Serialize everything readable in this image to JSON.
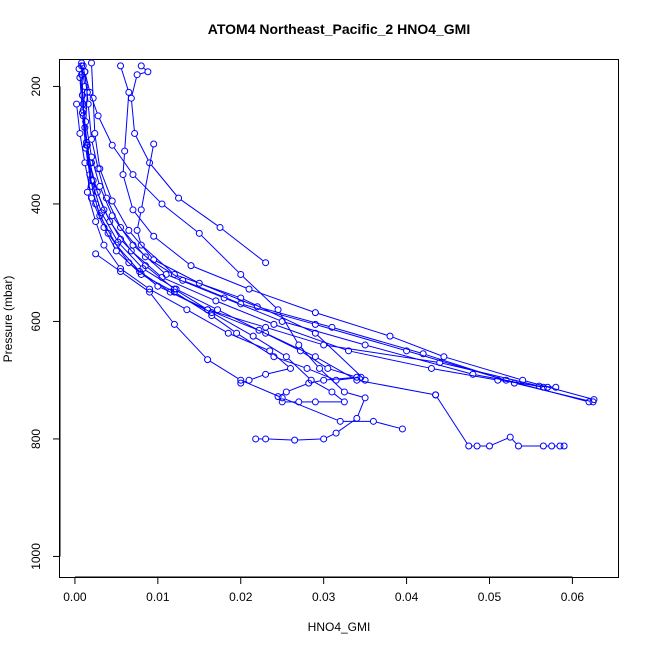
{
  "chart_data": {
    "type": "scatter",
    "title": "ATOM4 Northeast_Pacific_2 HNO4_GMI",
    "xlabel": "HNO4_GMI",
    "ylabel": "Pressure (mbar)",
    "xlim": [
      -0.0018,
      0.0655
    ],
    "ylim": [
      1035,
      155
    ],
    "y_reversed": true,
    "x_ticks": [
      0.0,
      0.01,
      0.02,
      0.03,
      0.04,
      0.05,
      0.06
    ],
    "x_tick_labels": [
      "0.00",
      "0.01",
      "0.02",
      "0.03",
      "0.04",
      "0.05",
      "0.06"
    ],
    "y_ticks": [
      200,
      400,
      600,
      800,
      1000
    ],
    "y_tick_labels": [
      "200",
      "400",
      "600",
      "800",
      "1000"
    ],
    "grid": false,
    "legend": "none",
    "color": "#0000ff",
    "marker": "open-circle",
    "series": [
      {
        "x": [
          0.0008,
          0.0012,
          0.001,
          0.0014,
          0.0018,
          0.0025,
          0.004,
          0.0065,
          0.01,
          0.016,
          0.023,
          0.03,
          0.044,
          0.056,
          0.058
        ],
        "y": [
          160,
          200,
          250,
          300,
          350,
          400,
          450,
          500,
          540,
          580,
          610,
          640,
          670,
          710,
          712
        ]
      },
      {
        "x": [
          0.001,
          0.0015,
          0.0013,
          0.002,
          0.003,
          0.0045,
          0.007,
          0.011,
          0.018,
          0.025,
          0.035,
          0.048,
          0.0565
        ],
        "y": [
          165,
          210,
          260,
          320,
          370,
          420,
          470,
          520,
          560,
          600,
          640,
          690,
          712
        ]
      },
      {
        "x": [
          0.0005,
          0.0009,
          0.0012,
          0.0018,
          0.0027,
          0.0042,
          0.0068,
          0.0105,
          0.017,
          0.024,
          0.033,
          0.043,
          0.051,
          0.057
        ],
        "y": [
          170,
          215,
          270,
          330,
          380,
          430,
          480,
          525,
          565,
          605,
          650,
          680,
          700,
          712
        ]
      },
      {
        "x": [
          0.0012,
          0.0016,
          0.002,
          0.0028,
          0.0038,
          0.0055,
          0.0085,
          0.013,
          0.02,
          0.029,
          0.04,
          0.052,
          0.062
        ],
        "y": [
          175,
          230,
          290,
          340,
          390,
          440,
          490,
          530,
          570,
          605,
          650,
          700,
          737
        ]
      },
      {
        "x": [
          0.002,
          0.0022,
          0.0024,
          0.003,
          0.0045,
          0.0065,
          0.0095,
          0.015,
          0.022,
          0.031,
          0.042,
          0.053,
          0.0625
        ],
        "y": [
          160,
          220,
          280,
          340,
          395,
          445,
          495,
          535,
          575,
          610,
          655,
          705,
          737
        ]
      },
      {
        "x": [
          0.0055,
          0.0065,
          0.006,
          0.0058,
          0.007,
          0.0095,
          0.014,
          0.021,
          0.029,
          0.038,
          0.0445,
          0.054,
          0.0626
        ],
        "y": [
          165,
          210,
          310,
          350,
          410,
          455,
          505,
          545,
          585,
          625,
          660,
          700,
          733
        ]
      },
      {
        "x": [
          0.008,
          0.0088,
          0.0075,
          0.0068,
          0.0072,
          0.009,
          0.0125,
          0.0175,
          0.023
        ],
        "y": [
          165,
          175,
          180,
          220,
          280,
          330,
          390,
          440,
          500
        ]
      },
      {
        "x": [
          0.0095,
          0.008,
          0.0075,
          0.008,
          0.012,
          0.02,
          0.029,
          0.035
        ],
        "y": [
          298,
          410,
          445,
          470,
          520,
          560,
          620,
          700
        ]
      },
      {
        "x": [
          0.0008,
          0.001,
          0.0015,
          0.0022,
          0.0035,
          0.0055,
          0.0085,
          0.012,
          0.016,
          0.023,
          0.029,
          0.034,
          0.0435
        ],
        "y": [
          180,
          240,
          300,
          360,
          410,
          460,
          505,
          545,
          580,
          620,
          660,
          700,
          725
        ]
      },
      {
        "x": [
          0.0025,
          0.0055,
          0.009,
          0.012,
          0.016,
          0.02,
          0.025,
          0.032,
          0.036,
          0.0395
        ],
        "y": [
          485,
          515,
          550,
          605,
          665,
          700,
          730,
          770,
          770,
          783
        ]
      },
      {
        "x": [
          0.0002,
          0.0006,
          0.0012,
          0.002,
          0.0035,
          0.005,
          0.008,
          0.012,
          0.0165,
          0.0195,
          0.024,
          0.028,
          0.0315,
          0.0345
        ],
        "y": [
          230,
          280,
          330,
          390,
          440,
          480,
          520,
          550,
          590,
          620,
          660,
          680,
          700,
          695
        ]
      },
      {
        "x": [
          0.0012,
          0.0018,
          0.0028,
          0.0045,
          0.007,
          0.0105,
          0.015,
          0.02,
          0.0245,
          0.027,
          0.0295,
          0.0325,
          0.035,
          0.034,
          0.0315,
          0.03,
          0.0265,
          0.023,
          0.0218
        ],
        "y": [
          175,
          210,
          250,
          300,
          350,
          400,
          450,
          520,
          580,
          640,
          680,
          720,
          730,
          765,
          790,
          800,
          802,
          800,
          800
        ]
      },
      {
        "x": [
          0.0008,
          0.001,
          0.0014,
          0.002,
          0.0032,
          0.0052,
          0.0082,
          0.0122,
          0.0172,
          0.0222,
          0.0272,
          0.0305,
          0.034,
          0.03,
          0.0282,
          0.0255,
          0.0245
        ],
        "y": [
          165,
          230,
          295,
          360,
          415,
          465,
          510,
          545,
          580,
          615,
          650,
          680,
          695,
          700,
          705,
          720,
          728
        ]
      },
      {
        "x": [
          0.0006,
          0.0009,
          0.0013,
          0.002,
          0.003,
          0.005,
          0.0078,
          0.0115,
          0.0165,
          0.0215,
          0.0255,
          0.0285,
          0.031,
          0.0325,
          0.029,
          0.027,
          0.025
        ],
        "y": [
          185,
          245,
          305,
          370,
          420,
          470,
          515,
          550,
          585,
          625,
          660,
          700,
          720,
          737,
          737,
          737,
          737
        ]
      },
      {
        "x": [
          0.0435,
          0.0475,
          0.0485,
          0.05,
          0.0525,
          0.0535,
          0.0565,
          0.0575,
          0.0585,
          0.059
        ],
        "y": [
          725,
          812,
          812,
          812,
          797,
          812,
          812,
          812,
          812,
          812
        ]
      },
      {
        "x": [
          0.002,
          0.0015,
          0.0025,
          0.0035,
          0.0055,
          0.009,
          0.0135,
          0.0185,
          0.0235,
          0.026,
          0.023,
          0.021,
          0.02
        ],
        "y": [
          330,
          380,
          430,
          470,
          510,
          545,
          580,
          620,
          650,
          680,
          690,
          700,
          705
        ]
      }
    ]
  }
}
